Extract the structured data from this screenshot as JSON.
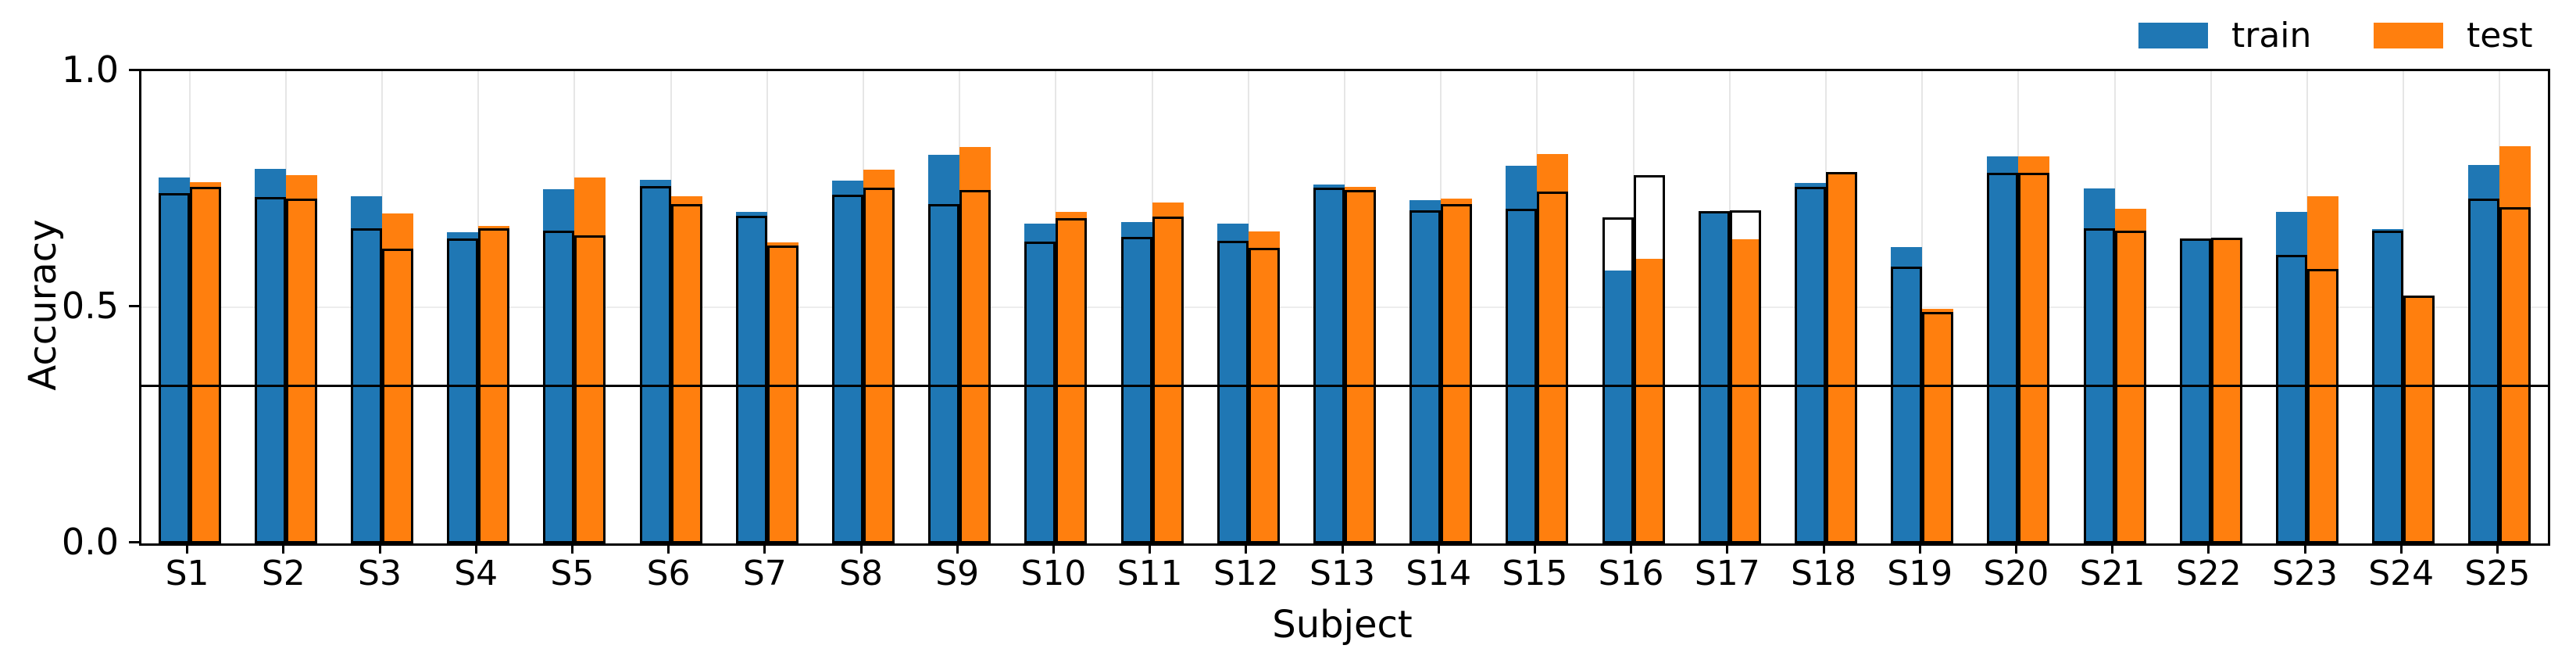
{
  "chart_data": {
    "type": "bar",
    "title": "",
    "xlabel": "Subject",
    "ylabel": "Accuracy",
    "ylim": [
      0,
      1
    ],
    "yticks": [
      {
        "label": "0.0",
        "value": 0.0
      },
      {
        "label": "0.5",
        "value": 0.5
      },
      {
        "label": "1.0",
        "value": 1.0
      }
    ],
    "ygrid": [
      0.5
    ],
    "chance_level": 0.333,
    "categories": [
      "S1",
      "S2",
      "S3",
      "S4",
      "S5",
      "S6",
      "S7",
      "S8",
      "S9",
      "S10",
      "S11",
      "S12",
      "S13",
      "S14",
      "S15",
      "S16",
      "S17",
      "S18",
      "S19",
      "S20",
      "S21",
      "S22",
      "S23",
      "S24",
      "S25"
    ],
    "series": [
      {
        "name": "train",
        "role": "fill",
        "group": "train",
        "color": "#1f77b4",
        "values": [
          0.775,
          0.793,
          0.735,
          0.659,
          0.75,
          0.77,
          0.702,
          0.768,
          0.823,
          0.677,
          0.68,
          0.677,
          0.76,
          0.727,
          0.8,
          0.578,
          0.7,
          0.764,
          0.627,
          0.82,
          0.751,
          0.645,
          0.702,
          0.665,
          0.801
        ]
      },
      {
        "name": "train-outline",
        "role": "outline",
        "group": "train",
        "color": "#000000",
        "values": [
          0.742,
          0.733,
          0.667,
          0.646,
          0.662,
          0.757,
          0.694,
          0.739,
          0.718,
          0.639,
          0.649,
          0.641,
          0.754,
          0.705,
          0.708,
          0.69,
          0.704,
          0.755,
          0.586,
          0.785,
          0.667,
          0.645,
          0.611,
          0.662,
          0.73
        ]
      },
      {
        "name": "test",
        "role": "fill",
        "group": "test",
        "color": "#ff7f0e",
        "values": [
          0.765,
          0.78,
          0.699,
          0.672,
          0.775,
          0.735,
          0.638,
          0.791,
          0.839,
          0.702,
          0.722,
          0.66,
          0.755,
          0.73,
          0.824,
          0.603,
          0.644,
          0.787,
          0.497,
          0.82,
          0.708,
          0.647,
          0.735,
          0.522,
          0.841
        ]
      },
      {
        "name": "test-outline",
        "role": "outline",
        "group": "test",
        "color": "#000000",
        "values": [
          0.755,
          0.73,
          0.624,
          0.668,
          0.652,
          0.719,
          0.63,
          0.753,
          0.748,
          0.689,
          0.692,
          0.626,
          0.748,
          0.718,
          0.745,
          0.78,
          0.705,
          0.787,
          0.49,
          0.785,
          0.662,
          0.647,
          0.581,
          0.525,
          0.712
        ]
      }
    ],
    "legend": {
      "position": "top-right",
      "entries": [
        {
          "label": "train",
          "color": "#1f77b4"
        },
        {
          "label": "test",
          "color": "#ff7f0e"
        }
      ]
    }
  }
}
